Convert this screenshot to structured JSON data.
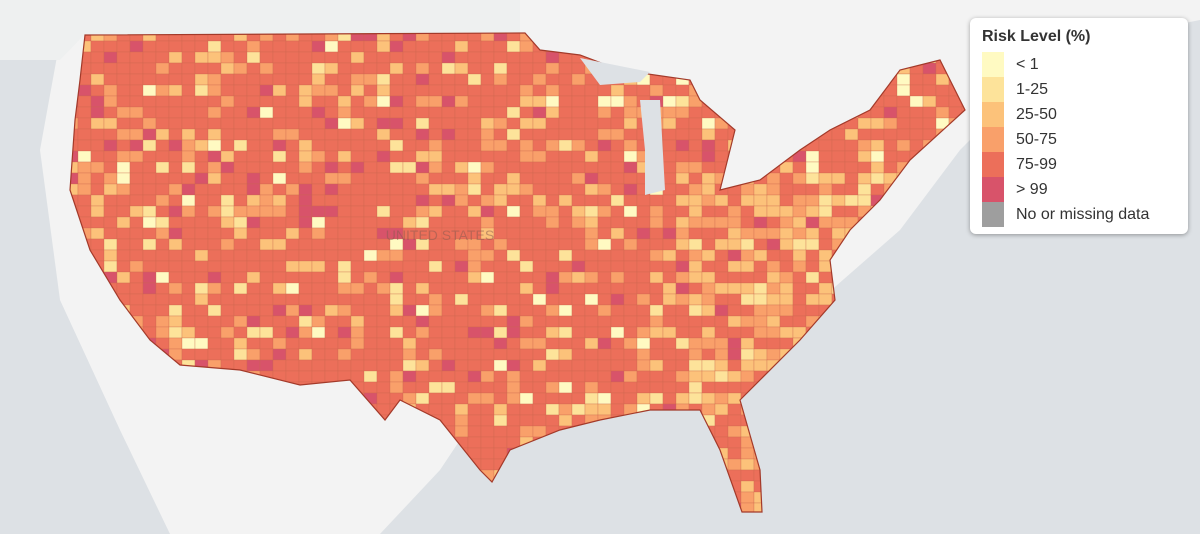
{
  "map_label": "UNITED STATES",
  "legend": {
    "title": "Risk Level (%)",
    "items": [
      {
        "label": "< 1",
        "color": "#fffac2"
      },
      {
        "label": "1-25",
        "color": "#fde39a"
      },
      {
        "label": "25-50",
        "color": "#fcc27a"
      },
      {
        "label": "50-75",
        "color": "#f9a06a"
      },
      {
        "label": "75-99",
        "color": "#ec6f5a"
      },
      {
        "label": "> 99",
        "color": "#d8536a"
      },
      {
        "label": "No or missing data",
        "color": "#9e9e9e"
      }
    ]
  }
}
